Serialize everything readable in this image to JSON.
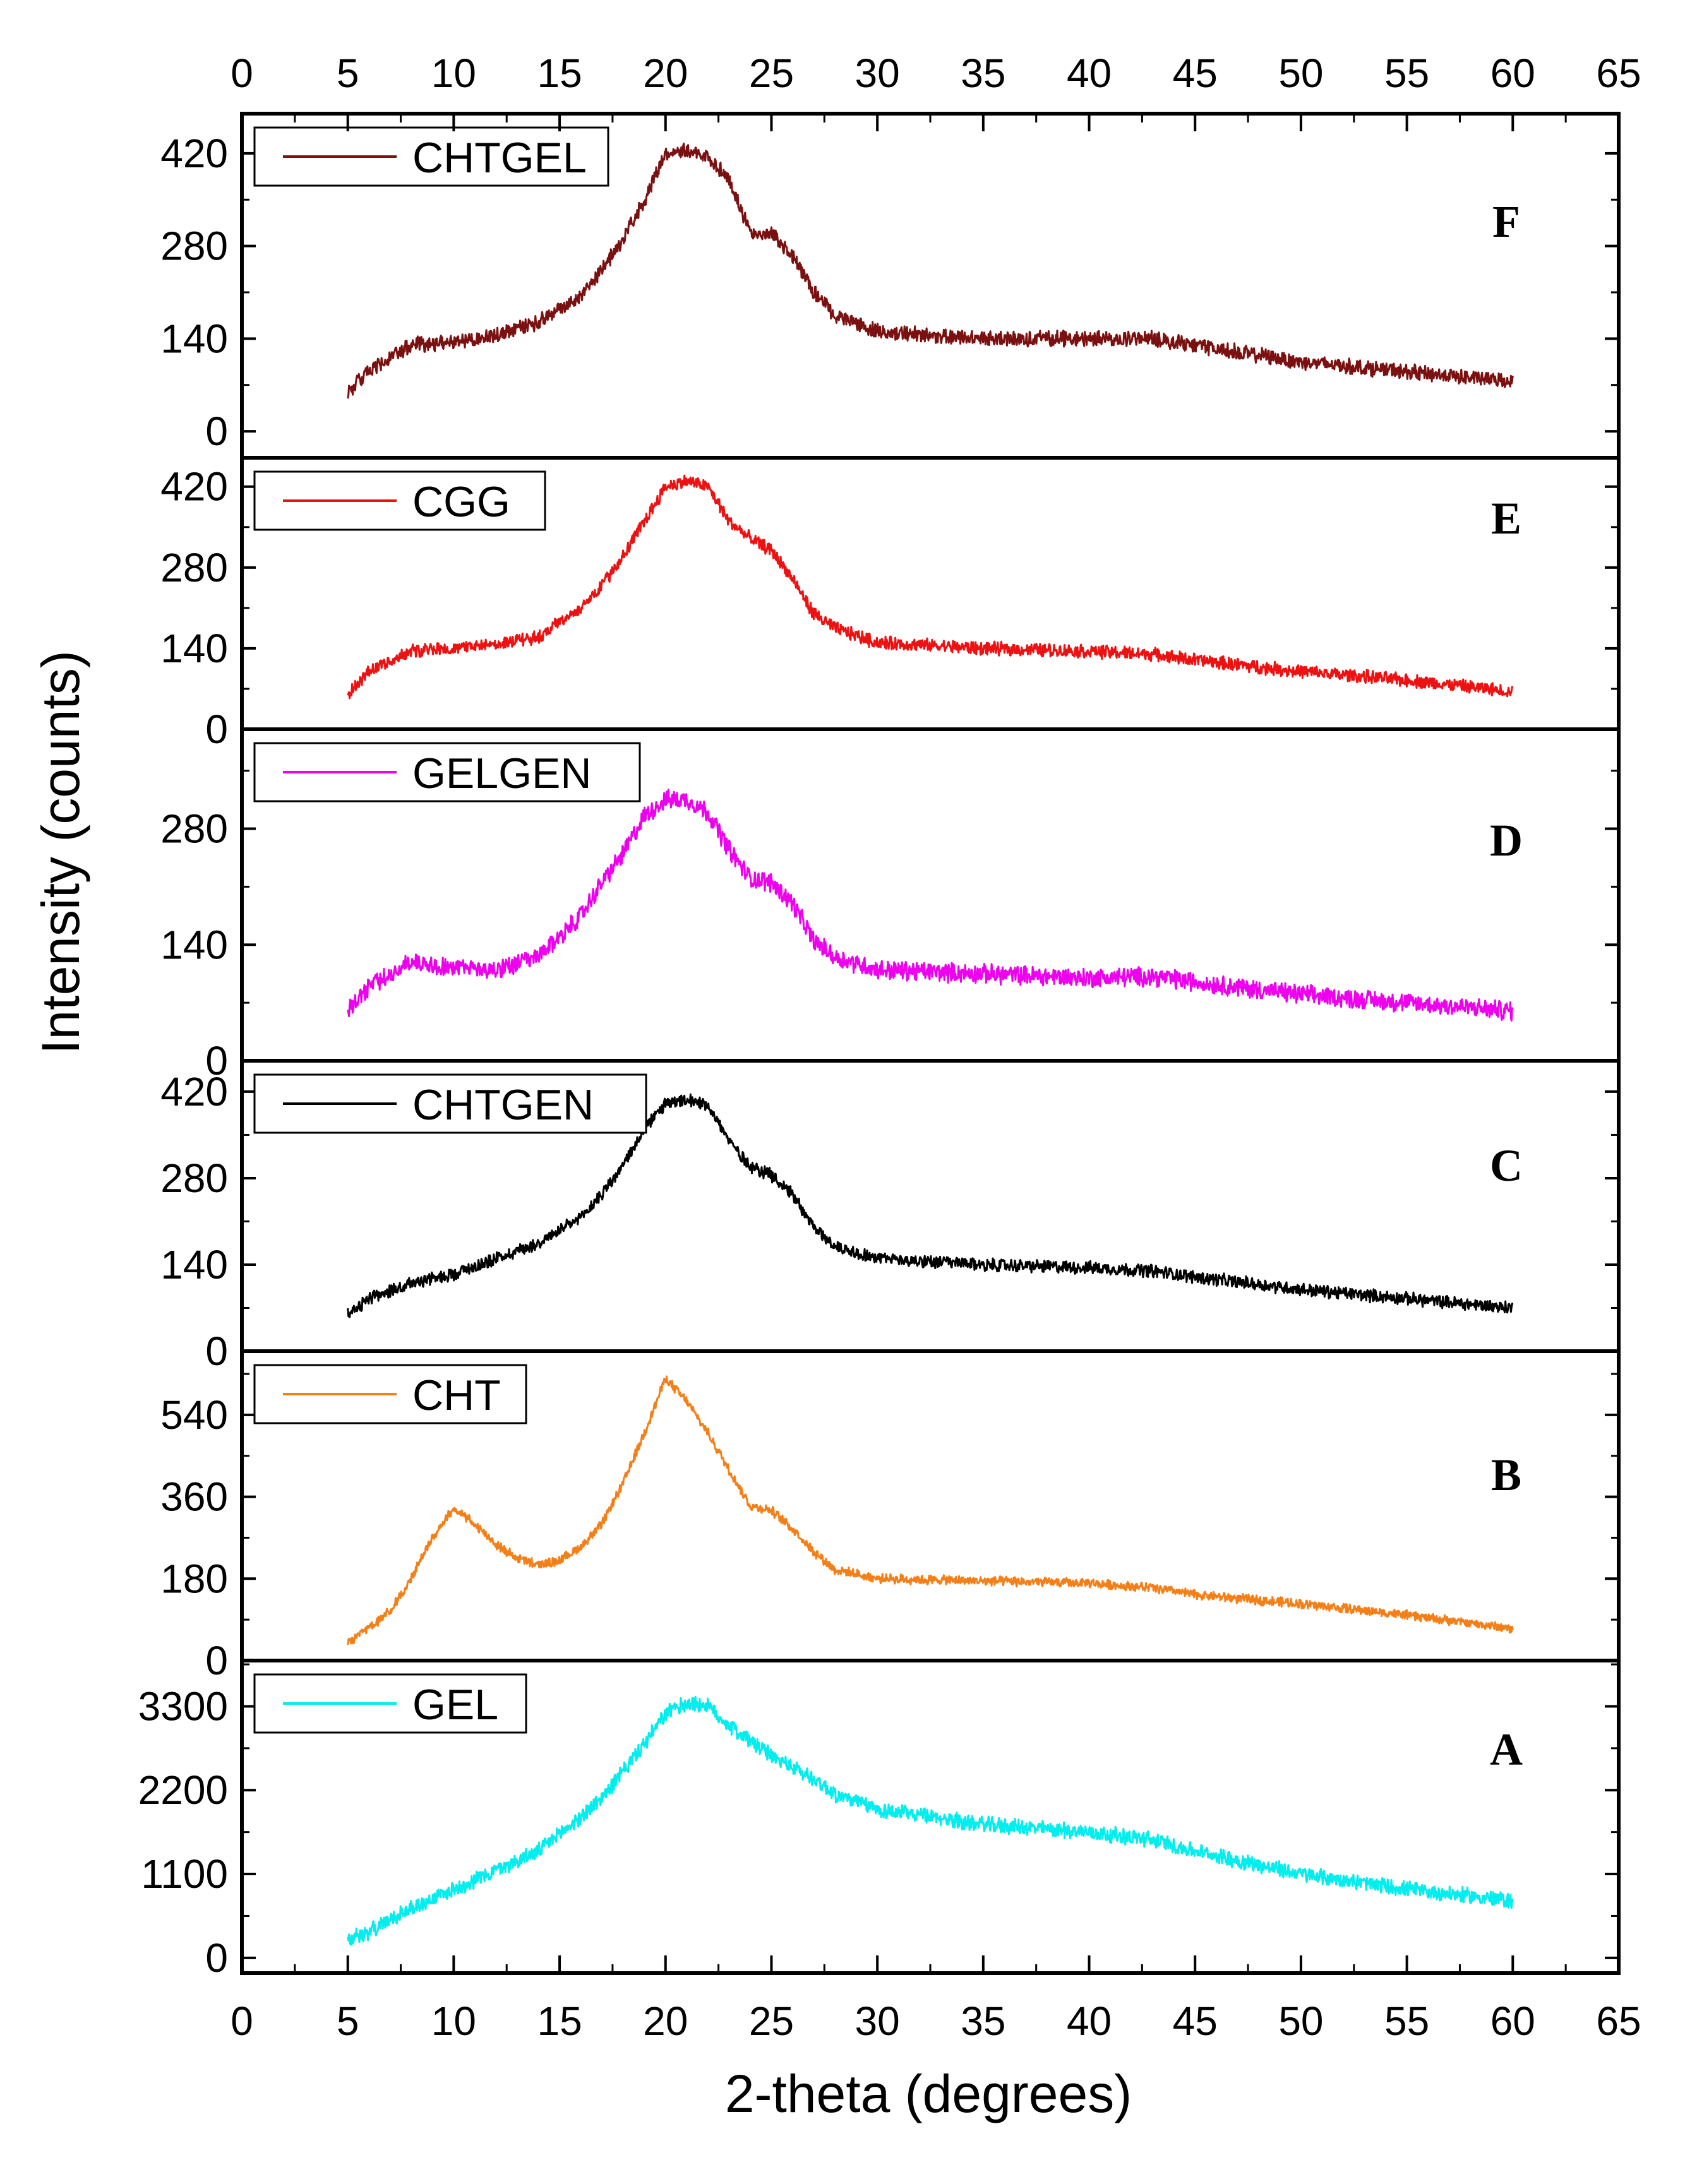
{
  "chart_data": {
    "type": "line",
    "layout": "stacked-panels",
    "xlabel": "2-theta (degrees)",
    "ylabel": "Intensity (counts)",
    "xlim": [
      0,
      65
    ],
    "xticks": [
      0,
      5,
      10,
      15,
      20,
      25,
      30,
      35,
      40,
      45,
      50,
      55,
      60,
      65
    ],
    "xtick_labels": [
      "0",
      "5",
      "10",
      "15",
      "20",
      "25",
      "30",
      "35",
      "40",
      "45",
      "50",
      "55",
      "60",
      "65"
    ],
    "grid": false,
    "panels": [
      {
        "letter": "F",
        "legend": "CHTGEL",
        "color": "#7b1010",
        "ylim": [
          -40,
          480
        ],
        "yticks": [
          0,
          140,
          280,
          420
        ],
        "ytick_labels": [
          "0",
          "140",
          "280",
          "420"
        ],
        "noise": 10,
        "x": [
          5,
          6,
          8,
          10,
          12,
          14,
          16,
          17,
          18,
          19,
          20,
          21,
          22,
          23,
          24,
          25,
          26,
          27,
          28,
          30,
          35,
          40,
          43,
          45,
          50,
          55,
          60
        ],
        "y": [
          60,
          90,
          130,
          135,
          145,
          165,
          205,
          245,
          290,
          350,
          420,
          425,
          415,
          380,
          300,
          300,
          265,
          210,
          175,
          150,
          140,
          140,
          140,
          130,
          105,
          90,
          75
        ]
      },
      {
        "letter": "E",
        "legend": "CGG",
        "color": "#ee1111",
        "ylim": [
          0,
          470
        ],
        "yticks": [
          0,
          140,
          280,
          420
        ],
        "ytick_labels": [
          "0",
          "140",
          "280",
          "420"
        ],
        "noise": 10,
        "x": [
          5,
          6,
          8,
          10,
          12,
          14,
          16,
          17,
          18,
          19,
          20,
          21,
          22,
          23,
          24,
          25,
          26,
          27,
          28,
          30,
          35,
          40,
          43,
          45,
          50,
          55,
          60
        ],
        "y": [
          60,
          100,
          135,
          140,
          148,
          160,
          210,
          250,
          300,
          360,
          420,
          430,
          420,
          360,
          330,
          310,
          260,
          200,
          175,
          150,
          140,
          135,
          130,
          120,
          100,
          85,
          65
        ]
      },
      {
        "letter": "D",
        "legend": "GELGEN",
        "color": "#ee00ee",
        "ylim": [
          0,
          400
        ],
        "yticks": [
          0,
          140,
          280
        ],
        "ytick_labels": [
          "0",
          "140",
          "280"
        ],
        "noise": 10,
        "x": [
          5,
          6,
          8,
          10,
          12,
          14,
          16,
          17,
          18,
          19,
          20,
          21,
          22,
          23,
          24,
          25,
          26,
          27,
          28,
          30,
          35,
          40,
          43,
          45,
          50,
          55,
          60
        ],
        "y": [
          60,
          90,
          120,
          112,
          110,
          125,
          175,
          215,
          250,
          295,
          315,
          315,
          300,
          255,
          220,
          215,
          190,
          145,
          125,
          110,
          105,
          100,
          102,
          95,
          80,
          70,
          60
        ]
      },
      {
        "letter": "C",
        "legend": "CHTGEN",
        "color": "#000000",
        "ylim": [
          0,
          470
        ],
        "yticks": [
          0,
          140,
          280,
          420
        ],
        "ytick_labels": [
          "0",
          "140",
          "280",
          "420"
        ],
        "noise": 9,
        "x": [
          5,
          6,
          8,
          10,
          12,
          14,
          16,
          17,
          18,
          19,
          20,
          21,
          22,
          23,
          24,
          25,
          26,
          27,
          28,
          30,
          35,
          40,
          43,
          45,
          50,
          55,
          60
        ],
        "y": [
          60,
          85,
          110,
          125,
          150,
          175,
          215,
          255,
          300,
          360,
          400,
          405,
          400,
          340,
          300,
          285,
          255,
          200,
          170,
          150,
          140,
          135,
          130,
          120,
          100,
          85,
          70
        ]
      },
      {
        "letter": "B",
        "legend": "CHT",
        "color": "#f57f17",
        "ylim": [
          0,
          680
        ],
        "yticks": [
          0,
          180,
          360,
          540
        ],
        "ytick_labels": [
          "0",
          "180",
          "360",
          "540"
        ],
        "noise": 9,
        "x": [
          5,
          6,
          7,
          8,
          9,
          10,
          11,
          12,
          13,
          14,
          15,
          16,
          17,
          18,
          19,
          20,
          21,
          22,
          23,
          24,
          25,
          26,
          27,
          28,
          30,
          35,
          40,
          43,
          45,
          50,
          55,
          60
        ],
        "y": [
          40,
          70,
          110,
          180,
          270,
          335,
          300,
          255,
          225,
          210,
          220,
          250,
          300,
          390,
          500,
          620,
          570,
          500,
          420,
          340,
          330,
          290,
          240,
          200,
          180,
          175,
          170,
          160,
          145,
          125,
          100,
          70
        ]
      },
      {
        "letter": "A",
        "legend": "GEL",
        "color": "#00eeee",
        "ylim": [
          -200,
          3900
        ],
        "yticks": [
          0,
          1100,
          2200,
          3300
        ],
        "ytick_labels": [
          "0",
          "1100",
          "2200",
          "3300"
        ],
        "noise": 90,
        "x": [
          5,
          6,
          8,
          10,
          12,
          14,
          16,
          17,
          18,
          19,
          20,
          21,
          22,
          23,
          24,
          25,
          26,
          27,
          28,
          30,
          35,
          40,
          43,
          45,
          50,
          55,
          60
        ],
        "y": [
          250,
          350,
          650,
          900,
          1150,
          1400,
          1850,
          2100,
          2450,
          2800,
          3200,
          3350,
          3300,
          3050,
          2850,
          2650,
          2500,
          2350,
          2150,
          1950,
          1750,
          1650,
          1550,
          1400,
          1100,
          900,
          750
        ]
      }
    ]
  }
}
